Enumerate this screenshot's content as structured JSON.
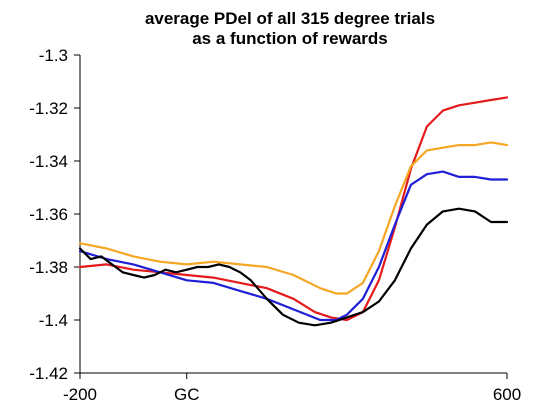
{
  "chart_data": {
    "type": "line",
    "title": [
      "average PDel of all 315 degree trials",
      "as a function of rewards"
    ],
    "xlabel": "",
    "ylabel": "",
    "xlim": [
      -200,
      600
    ],
    "ylim": [
      -1.42,
      -1.3
    ],
    "x_tick_labels": [
      {
        "x": -200,
        "label": "-200"
      },
      {
        "x": 0,
        "label": "GC"
      },
      {
        "x": 600,
        "label": "600"
      }
    ],
    "y_ticks": [
      -1.3,
      -1.32,
      -1.34,
      -1.36,
      -1.38,
      -1.4,
      -1.42
    ],
    "grid": false,
    "legend": "none",
    "series": [
      {
        "color": "#e41a1c",
        "x": [
          -200,
          -150,
          -100,
          -50,
          0,
          50,
          100,
          150,
          200,
          240,
          270,
          300,
          330,
          360,
          390,
          420,
          450,
          480,
          510,
          540,
          570,
          600
        ],
        "values": [
          -1.38,
          -1.379,
          -1.381,
          -1.382,
          -1.383,
          -1.384,
          -1.386,
          -1.388,
          -1.392,
          -1.397,
          -1.399,
          -1.4,
          -1.397,
          -1.385,
          -1.365,
          -1.343,
          -1.327,
          -1.321,
          -1.319,
          -1.318,
          -1.317,
          -1.316
        ]
      },
      {
        "color": "#f5a623",
        "x": [
          -200,
          -150,
          -100,
          -50,
          0,
          50,
          100,
          150,
          200,
          250,
          280,
          300,
          330,
          360,
          390,
          420,
          450,
          480,
          510,
          540,
          570,
          600
        ],
        "values": [
          -1.371,
          -1.373,
          -1.376,
          -1.378,
          -1.379,
          -1.378,
          -1.379,
          -1.38,
          -1.383,
          -1.388,
          -1.39,
          -1.39,
          -1.386,
          -1.374,
          -1.357,
          -1.342,
          -1.336,
          -1.335,
          -1.334,
          -1.334,
          -1.333,
          -1.334
        ]
      },
      {
        "color": "#1f1fd6",
        "x": [
          -200,
          -150,
          -100,
          -50,
          0,
          50,
          100,
          150,
          200,
          250,
          280,
          300,
          330,
          360,
          390,
          420,
          450,
          480,
          510,
          540,
          570,
          600
        ],
        "values": [
          -1.374,
          -1.377,
          -1.379,
          -1.382,
          -1.385,
          -1.386,
          -1.389,
          -1.392,
          -1.396,
          -1.4,
          -1.4,
          -1.398,
          -1.392,
          -1.38,
          -1.364,
          -1.349,
          -1.345,
          -1.344,
          -1.346,
          -1.346,
          -1.347,
          -1.347
        ]
      },
      {
        "color": "#000000",
        "x": [
          -200,
          -180,
          -160,
          -140,
          -120,
          -100,
          -80,
          -60,
          -40,
          -20,
          0,
          20,
          40,
          60,
          80,
          100,
          120,
          150,
          180,
          210,
          240,
          270,
          300,
          330,
          360,
          390,
          420,
          450,
          480,
          510,
          540,
          570,
          600
        ],
        "values": [
          -1.373,
          -1.377,
          -1.376,
          -1.379,
          -1.382,
          -1.383,
          -1.384,
          -1.383,
          -1.381,
          -1.382,
          -1.381,
          -1.38,
          -1.38,
          -1.379,
          -1.38,
          -1.382,
          -1.385,
          -1.392,
          -1.398,
          -1.401,
          -1.402,
          -1.401,
          -1.399,
          -1.397,
          -1.393,
          -1.385,
          -1.373,
          -1.364,
          -1.359,
          -1.358,
          -1.359,
          -1.363,
          -1.363
        ]
      }
    ]
  }
}
